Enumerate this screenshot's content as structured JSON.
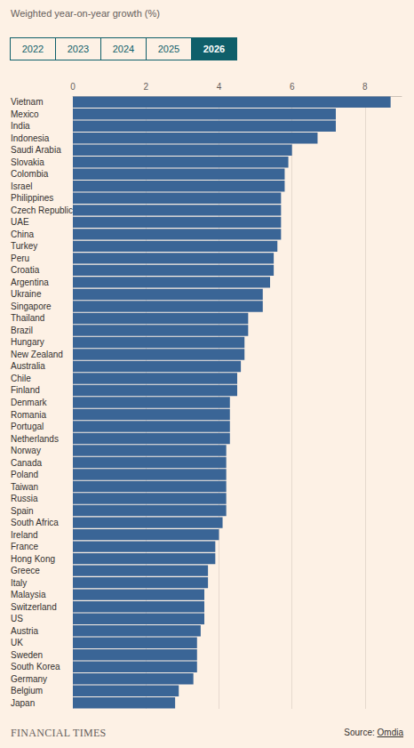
{
  "chart_data": {
    "type": "bar",
    "orientation": "horizontal",
    "subtitle": "Weighted year-on-year growth (%)",
    "tabs": [
      "2022",
      "2023",
      "2024",
      "2025",
      "2026"
    ],
    "active_tab": "2026",
    "footer": "FINANCIAL TIMES",
    "source_label": "Source:",
    "source": "Omdia",
    "categories": [
      "Vietnam",
      "Mexico",
      "India",
      "Indonesia",
      "Saudi Arabia",
      "Slovakia",
      "Colombia",
      "Israel",
      "Philippines",
      "Czech Republic",
      "UAE",
      "China",
      "Turkey",
      "Peru",
      "Croatia",
      "Argentina",
      "Ukraine",
      "Singapore",
      "Thailand",
      "Brazil",
      "Hungary",
      "New Zealand",
      "Australia",
      "Chile",
      "Finland",
      "Denmark",
      "Romania",
      "Portugal",
      "Netherlands",
      "Norway",
      "Canada",
      "Poland",
      "Taiwan",
      "Russia",
      "Spain",
      "South Africa",
      "Ireland",
      "France",
      "Hong Kong",
      "Greece",
      "Italy",
      "Malaysia",
      "Switzerland",
      "US",
      "Austria",
      "UK",
      "Sweden",
      "South Korea",
      "Germany",
      "Belgium",
      "Japan"
    ],
    "values": [
      8.7,
      7.2,
      7.2,
      6.7,
      6.0,
      5.9,
      5.8,
      5.8,
      5.7,
      5.7,
      5.7,
      5.7,
      5.6,
      5.5,
      5.5,
      5.4,
      5.2,
      5.2,
      4.8,
      4.8,
      4.7,
      4.7,
      4.6,
      4.5,
      4.5,
      4.3,
      4.3,
      4.3,
      4.3,
      4.2,
      4.2,
      4.2,
      4.2,
      4.2,
      4.2,
      4.1,
      4.0,
      3.9,
      3.9,
      3.7,
      3.7,
      3.6,
      3.6,
      3.6,
      3.5,
      3.4,
      3.4,
      3.4,
      3.3,
      2.9,
      2.8
    ],
    "color": "#3a6596",
    "xlim": [
      0,
      9
    ],
    "xticks": [
      0,
      2,
      4,
      6,
      8
    ],
    "grid": true
  }
}
